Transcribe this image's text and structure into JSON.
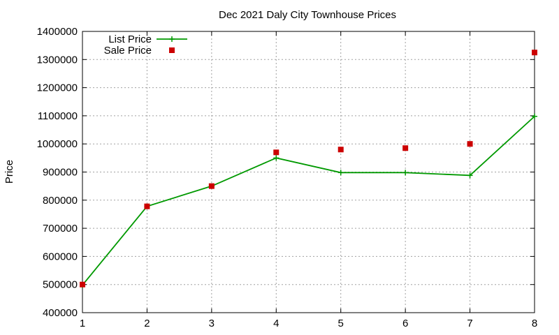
{
  "chart_data": {
    "type": "line",
    "title": "Dec 2021 Daly City Townhouse Prices",
    "xlabel": "",
    "ylabel": "Price",
    "xlim": [
      1,
      8
    ],
    "ylim": [
      400000,
      1400000
    ],
    "xticks": [
      "1",
      "2",
      "3",
      "4",
      "5",
      "6",
      "7",
      "8"
    ],
    "yticks": [
      "400000",
      "500000",
      "600000",
      "700000",
      "800000",
      "900000",
      "1000000",
      "1100000",
      "1200000",
      "1300000",
      "1400000"
    ],
    "grid": true,
    "legend_position": "top-left",
    "series": [
      {
        "name": "List Price",
        "style": "line-points",
        "marker": "plus",
        "color": "#009900",
        "x": [
          1,
          2,
          3,
          4,
          5,
          6,
          7,
          8
        ],
        "y": [
          498000,
          778000,
          850000,
          950000,
          898000,
          898000,
          888000,
          1098000
        ]
      },
      {
        "name": "Sale Price",
        "style": "points",
        "marker": "square",
        "color": "#cc0000",
        "x": [
          1,
          2,
          3,
          4,
          5,
          6,
          7,
          8
        ],
        "y": [
          500000,
          778000,
          850000,
          970000,
          980000,
          985000,
          1000000,
          1325000
        ]
      }
    ]
  }
}
